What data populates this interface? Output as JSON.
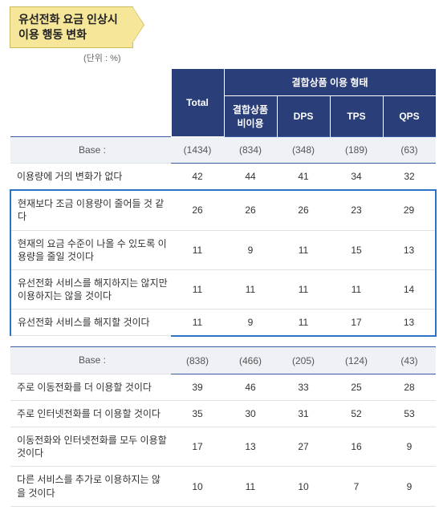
{
  "title_line1": "유선전화 요금 인상시",
  "title_line2": "이용 행동 변화",
  "unit_label": "(단위 : %)",
  "header": {
    "total": "Total",
    "group": "결합상품 이용 형태",
    "sub": [
      "결합상품 비이용",
      "DPS",
      "TPS",
      "QPS"
    ]
  },
  "base_label": "Base :",
  "section1": {
    "base": [
      "(1434)",
      "(834)",
      "(348)",
      "(189)",
      "(63)"
    ],
    "rows": [
      {
        "label": "이용량에 거의 변화가 없다",
        "vals": [
          "42",
          "44",
          "41",
          "34",
          "32"
        ],
        "hl": false
      },
      {
        "label": "현재보다 조금 이용량이 줄어들 것 같다",
        "vals": [
          "26",
          "26",
          "26",
          "23",
          "29"
        ],
        "hl": true
      },
      {
        "label": "현재의 요금 수준이 나올 수 있도록 이용량을 줄일 것이다",
        "vals": [
          "11",
          "9",
          "11",
          "15",
          "13"
        ],
        "hl": true
      },
      {
        "label": "유선전화 서비스를 해지하지는 않지만 이용하지는 않을 것이다",
        "vals": [
          "11",
          "11",
          "11",
          "11",
          "14"
        ],
        "hl": true
      },
      {
        "label": "유선전화 서비스를 해지할 것이다",
        "vals": [
          "11",
          "9",
          "11",
          "17",
          "13"
        ],
        "hl": true
      }
    ]
  },
  "section2": {
    "base": [
      "(838)",
      "(466)",
      "(205)",
      "(124)",
      "(43)"
    ],
    "rows": [
      {
        "label": "주로 이동전화를 더 이용할 것이다",
        "vals": [
          "39",
          "46",
          "33",
          "25",
          "28"
        ]
      },
      {
        "label": "주로 인터넷전화를 더 이용할 것이다",
        "vals": [
          "35",
          "30",
          "31",
          "52",
          "53"
        ]
      },
      {
        "label": "이동전화와 인터넷전화를 모두 이용할 것이다",
        "vals": [
          "17",
          "13",
          "27",
          "16",
          "9"
        ]
      },
      {
        "label": "다른 서비스를 추가로 이용하지는 않을 것이다",
        "vals": [
          "10",
          "11",
          "10",
          "7",
          "9"
        ]
      }
    ]
  },
  "colors": {
    "header_bg": "#2a3f7a",
    "header_fg": "#ffffff",
    "banner_bg": "#f6e69a",
    "banner_border": "#cbbb5e",
    "base_bg": "#eef1f6",
    "base_border": "#3a5aa0",
    "row_border": "#e2e2e2",
    "highlight_border": "#2e74c6"
  }
}
